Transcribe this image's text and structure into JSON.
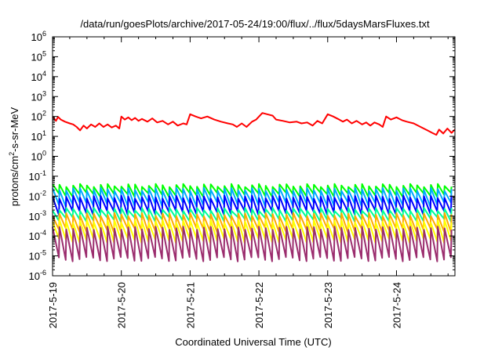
{
  "chart_data": {
    "type": "line",
    "title": "/data/run/goesPlots/archive/2017-05-24/19:00/flux/../flux/5daysMarsFluxes.txt",
    "xlabel": "Coordinated Universal Time (UTC)",
    "ylabel": "protons/cm²-s-sr-MeV",
    "ylabel_parts": {
      "a": "protons/cm",
      "sup": "2",
      "b": "-s-sr-MeV"
    },
    "yscale": "log",
    "ylim": [
      1e-06,
      1000000.0
    ],
    "xlim_days": [
      0,
      5.85
    ],
    "x_ticks": [
      "2017-5-19",
      "2017-5-20",
      "2017-5-21",
      "2017-5-22",
      "2017-5-23",
      "2017-5-24"
    ],
    "y_ticks": [
      {
        "base": "10",
        "exp": "-6"
      },
      {
        "base": "10",
        "exp": "-5"
      },
      {
        "base": "10",
        "exp": "-4"
      },
      {
        "base": "10",
        "exp": "-3"
      },
      {
        "base": "10",
        "exp": "-2"
      },
      {
        "base": "10",
        "exp": "-1"
      },
      {
        "base": "10",
        "exp": "0"
      },
      {
        "base": "10",
        "exp": "1"
      },
      {
        "base": "10",
        "exp": "2"
      },
      {
        "base": "10",
        "exp": "3"
      },
      {
        "base": "10",
        "exp": "4"
      },
      {
        "base": "10",
        "exp": "5"
      },
      {
        "base": "10",
        "exp": "6"
      }
    ],
    "grid": false,
    "series": [
      {
        "color": "#ff0000",
        "style": "irregular",
        "points": [
          [
            0.0,
            100
          ],
          [
            0.05,
            60
          ],
          [
            0.08,
            95
          ],
          [
            0.12,
            70
          ],
          [
            0.18,
            55
          ],
          [
            0.25,
            45
          ],
          [
            0.3,
            40
          ],
          [
            0.35,
            30
          ],
          [
            0.4,
            20
          ],
          [
            0.45,
            35
          ],
          [
            0.5,
            25
          ],
          [
            0.56,
            40
          ],
          [
            0.62,
            30
          ],
          [
            0.68,
            45
          ],
          [
            0.74,
            30
          ],
          [
            0.8,
            40
          ],
          [
            0.86,
            28
          ],
          [
            0.92,
            35
          ],
          [
            0.97,
            25
          ],
          [
            1.0,
            100
          ],
          [
            1.05,
            70
          ],
          [
            1.1,
            90
          ],
          [
            1.15,
            65
          ],
          [
            1.2,
            85
          ],
          [
            1.25,
            60
          ],
          [
            1.3,
            75
          ],
          [
            1.38,
            55
          ],
          [
            1.45,
            80
          ],
          [
            1.52,
            50
          ],
          [
            1.6,
            60
          ],
          [
            1.68,
            40
          ],
          [
            1.75,
            55
          ],
          [
            1.82,
            35
          ],
          [
            1.9,
            45
          ],
          [
            1.95,
            40
          ],
          [
            2.0,
            130
          ],
          [
            2.08,
            100
          ],
          [
            2.16,
            80
          ],
          [
            2.25,
            100
          ],
          [
            2.35,
            70
          ],
          [
            2.45,
            55
          ],
          [
            2.55,
            45
          ],
          [
            2.62,
            40
          ],
          [
            2.68,
            30
          ],
          [
            2.75,
            45
          ],
          [
            2.82,
            30
          ],
          [
            2.9,
            55
          ],
          [
            2.96,
            70
          ],
          [
            3.05,
            150
          ],
          [
            3.12,
            130
          ],
          [
            3.2,
            110
          ],
          [
            3.25,
            70
          ],
          [
            3.35,
            60
          ],
          [
            3.45,
            50
          ],
          [
            3.55,
            55
          ],
          [
            3.62,
            45
          ],
          [
            3.7,
            50
          ],
          [
            3.78,
            35
          ],
          [
            3.85,
            60
          ],
          [
            3.92,
            45
          ],
          [
            4.0,
            130
          ],
          [
            4.08,
            100
          ],
          [
            4.15,
            75
          ],
          [
            4.22,
            55
          ],
          [
            4.28,
            70
          ],
          [
            4.35,
            45
          ],
          [
            4.42,
            60
          ],
          [
            4.5,
            40
          ],
          [
            4.56,
            50
          ],
          [
            4.62,
            35
          ],
          [
            4.68,
            50
          ],
          [
            4.75,
            40
          ],
          [
            4.8,
            30
          ],
          [
            4.85,
            100
          ],
          [
            4.92,
            70
          ],
          [
            5.0,
            90
          ],
          [
            5.08,
            65
          ],
          [
            5.15,
            55
          ],
          [
            5.25,
            45
          ],
          [
            5.35,
            30
          ],
          [
            5.45,
            20
          ],
          [
            5.52,
            15
          ],
          [
            5.58,
            12
          ],
          [
            5.62,
            22
          ],
          [
            5.68,
            14
          ],
          [
            5.74,
            25
          ],
          [
            5.8,
            15
          ],
          [
            5.85,
            22
          ]
        ]
      },
      {
        "color": "#00ff00",
        "style": "sawtooth",
        "top": 0.035,
        "bottom": 0.012
      },
      {
        "color": "#00aaff",
        "style": "sawtooth",
        "top": 0.022,
        "bottom": 0.004
      },
      {
        "color": "#0000ff",
        "style": "sawtooth",
        "top": 0.009,
        "bottom": 0.0015
      },
      {
        "color": "#00ff99",
        "style": "sawtooth",
        "top": 0.0022,
        "bottom": 0.0007
      },
      {
        "color": "#ffaa00",
        "style": "sawtooth",
        "top": 0.0012,
        "bottom": 0.0002
      },
      {
        "color": "#ffff00",
        "style": "sawtooth",
        "top": 0.00055,
        "bottom": 6e-05
      },
      {
        "color": "#9b2d6e",
        "style": "sawtooth",
        "top": 0.00025,
        "bottom": 7e-06
      }
    ],
    "sawtooth_period_days": 0.1
  }
}
